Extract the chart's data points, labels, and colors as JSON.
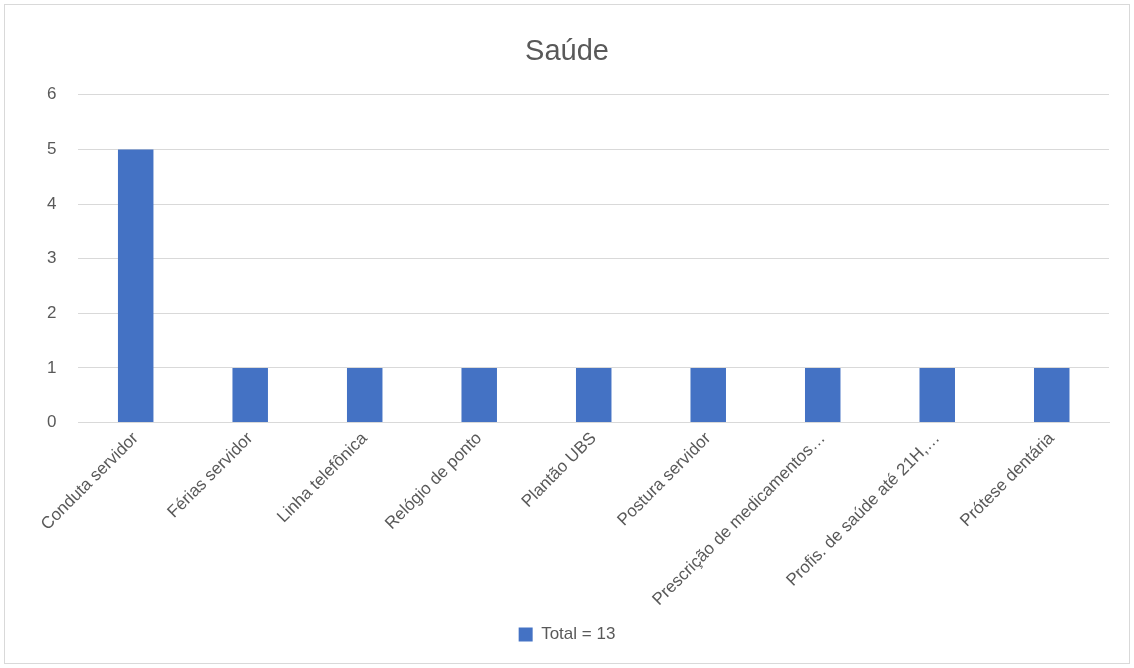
{
  "chart_data": {
    "type": "bar",
    "title": "Saúde",
    "categories": [
      "Conduta servidor",
      "Férias servidor",
      "Linha telefônica",
      "Relógio de ponto",
      "Plantão UBS",
      "Postura servidor",
      "Prescrição de medicamentos…",
      "Profis. de saúde até 21H,…",
      "Prótese dentária"
    ],
    "series": [
      {
        "name": "Total = 13",
        "color": "#4472c4",
        "values": [
          5,
          1,
          1,
          1,
          1,
          1,
          1,
          1,
          1
        ]
      }
    ],
    "ylim": [
      0,
      6
    ],
    "yticks": [
      0,
      1,
      2,
      3,
      4,
      5,
      6
    ],
    "grid": "y",
    "legend": "bottom"
  }
}
